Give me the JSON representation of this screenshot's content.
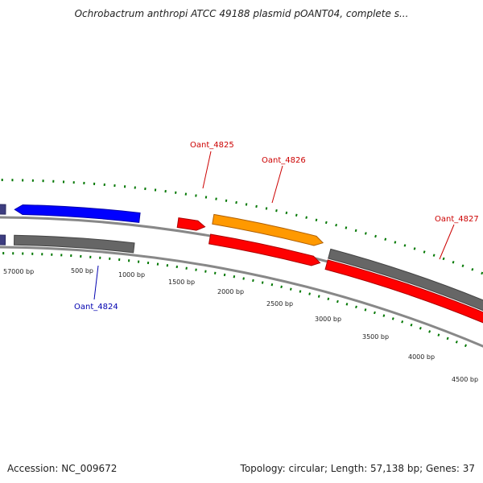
{
  "title": "Ochrobactrum anthropi ATCC 49188 plasmid pOANT04, complete s...",
  "footer": {
    "accession": "Accession: NC_009672",
    "summary": "Topology: circular; Length: 57,138 bp; Genes: 37"
  },
  "scale_labels": [
    "57000 bp",
    "500 bp",
    "1000 bp",
    "1500 bp",
    "2000 bp",
    "2500 bp",
    "3000 bp",
    "3500 bp",
    "4000 bp",
    "4500 bp"
  ],
  "gene_labels": [
    {
      "name": "Oant_4824",
      "color": "#0000b0"
    },
    {
      "name": "Oant_4825",
      "color": "#cc0000"
    },
    {
      "name": "Oant_4826",
      "color": "#cc0000"
    },
    {
      "name": "Oant_4827",
      "color": "#cc0000"
    }
  ],
  "colors": {
    "backbone": "#888888",
    "forward_cds": "#ff0000",
    "reverse_cds": "#0000ff",
    "rna_like": "#ff9900",
    "shadow_gray": "#666666",
    "shadow_navy": "#3d3d80",
    "scale_ticks": "#007700"
  }
}
